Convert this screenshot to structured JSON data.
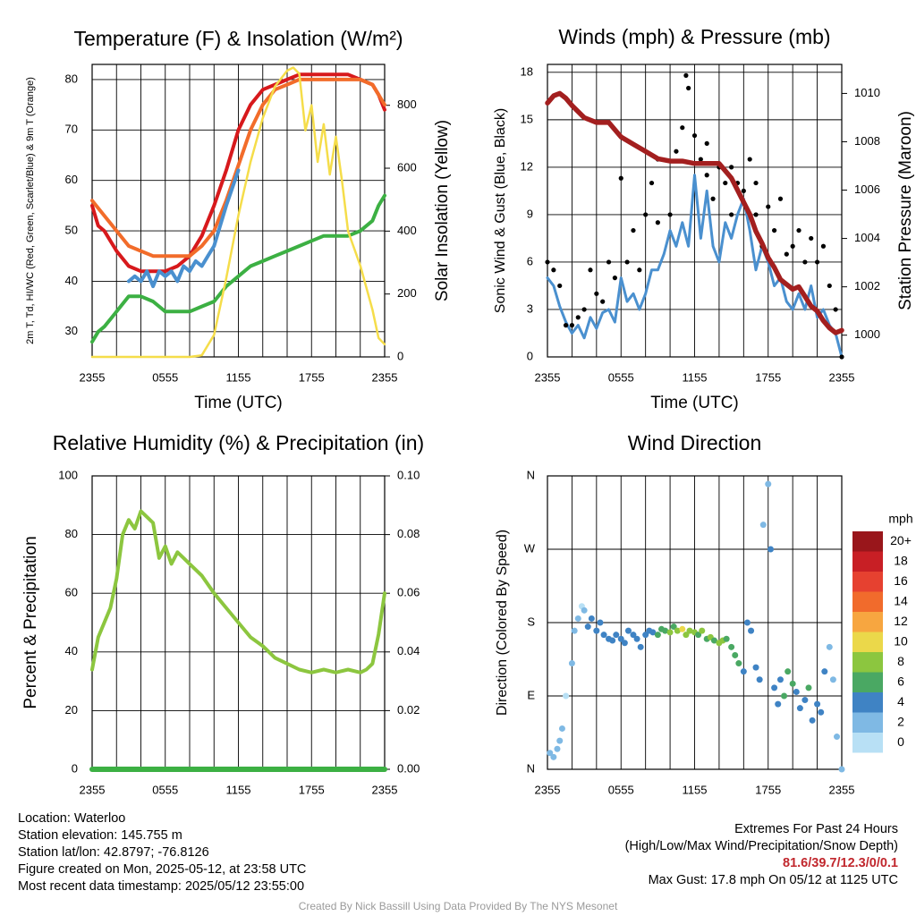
{
  "chart_data": [
    {
      "type": "line",
      "title": "Temperature (F) & Insolation (W/m²)",
      "xlabel": "Time (UTC)",
      "ylabel_left": "2m T, Td, HI/WC (Red, Green, Scarlet/Blue) & 9m T (Orange)",
      "ylabel_right": "Solar Insolation (Yellow)",
      "x_ticks": [
        "2355",
        "0555",
        "1155",
        "1755",
        "2355"
      ],
      "ylim": [
        25,
        83
      ],
      "y_ticks": [
        30,
        40,
        50,
        60,
        70,
        80
      ],
      "y2lim": [
        0,
        930
      ],
      "y2_ticks": [
        0,
        200,
        400,
        600,
        800
      ],
      "grid": true,
      "series": [
        {
          "name": "2m T",
          "color": "#d7191c",
          "axis": "left",
          "x": [
            0,
            0.5,
            1,
            2,
            3,
            4,
            5,
            6,
            7,
            8,
            9,
            10,
            11,
            12,
            13,
            14,
            15,
            16,
            17,
            18,
            19,
            20,
            21,
            22,
            23,
            23.5,
            24
          ],
          "values": [
            55,
            51,
            50,
            46,
            43,
            42,
            42,
            42,
            43,
            45,
            49,
            55,
            62,
            70,
            75,
            78,
            79,
            80,
            81,
            81,
            81,
            81,
            81,
            80,
            79,
            77,
            74
          ]
        },
        {
          "name": "9m T",
          "color": "#f26c2a",
          "axis": "left",
          "x": [
            0,
            1,
            2,
            3,
            4,
            5,
            6,
            7,
            8,
            9,
            10,
            11,
            12,
            13,
            14,
            15,
            16,
            17,
            18,
            19,
            20,
            21,
            22,
            23,
            24
          ],
          "values": [
            56,
            53,
            50,
            47,
            46,
            45,
            45,
            45,
            45,
            47,
            50,
            56,
            63,
            70,
            75,
            78,
            79,
            80,
            80,
            80,
            80,
            80,
            80,
            79,
            75
          ]
        },
        {
          "name": "HI/WC",
          "color": "#4a90cf",
          "axis": "left",
          "x": [
            3,
            3.5,
            4,
            4.5,
            5,
            5.5,
            6,
            6.5,
            7,
            7.5,
            8,
            8.5,
            9,
            9.5,
            10,
            11,
            12
          ],
          "values": [
            40,
            41,
            40,
            42,
            39,
            42,
            41,
            42,
            40,
            43,
            42,
            44,
            43,
            45,
            47,
            55,
            62
          ]
        },
        {
          "name": "2m Td",
          "color": "#3cb043",
          "axis": "left",
          "x": [
            0,
            0.5,
            1,
            2,
            3,
            4,
            5,
            6,
            7,
            8,
            9,
            10,
            11,
            12,
            13,
            14,
            15,
            16,
            17,
            18,
            19,
            20,
            21,
            22,
            23,
            23.5,
            24
          ],
          "values": [
            28,
            30,
            31,
            34,
            37,
            37,
            36,
            34,
            34,
            34,
            35,
            36,
            39,
            41,
            43,
            44,
            45,
            46,
            47,
            48,
            49,
            49,
            49,
            50,
            52,
            55,
            57
          ]
        },
        {
          "name": "Solar Insolation",
          "color": "#f5dd4a",
          "axis": "right",
          "x": [
            0,
            8,
            9,
            10,
            11,
            12,
            13,
            14,
            15,
            16,
            16.5,
            17,
            17.5,
            18,
            18.5,
            19,
            19.5,
            20,
            20.5,
            21,
            22,
            23,
            23.5,
            24
          ],
          "values": [
            0,
            0,
            5,
            70,
            250,
            450,
            620,
            760,
            860,
            910,
            920,
            900,
            720,
            800,
            620,
            740,
            580,
            700,
            560,
            400,
            290,
            150,
            60,
            40
          ]
        }
      ]
    },
    {
      "type": "line",
      "title": "Winds (mph) & Pressure (mb)",
      "xlabel": "Time (UTC)",
      "ylabel_left": "Sonic Wind & Gust (Blue, Black)",
      "ylabel_right": "Station Pressure (Maroon)",
      "x_ticks": [
        "2355",
        "0555",
        "1155",
        "1755",
        "2355"
      ],
      "ylim": [
        0,
        18.5
      ],
      "y_ticks": [
        0,
        3,
        6,
        9,
        12,
        15,
        18
      ],
      "y2lim": [
        999.1,
        1011.2
      ],
      "y2_ticks": [
        1000,
        1002,
        1004,
        1006,
        1008,
        1010
      ],
      "grid": true,
      "series": [
        {
          "name": "Sonic Wind",
          "color": "#4a90cf",
          "axis": "left",
          "x": [
            0,
            0.5,
            1,
            1.5,
            2,
            2.5,
            3,
            3.5,
            4,
            4.5,
            5,
            5.5,
            6,
            6.5,
            7,
            7.5,
            8,
            8.5,
            9,
            9.5,
            10,
            10.5,
            11,
            11.5,
            12,
            12.5,
            13,
            13.5,
            14,
            14.5,
            15,
            15.5,
            16,
            16.5,
            17,
            17.5,
            18,
            18.5,
            19,
            19.5,
            20,
            20.5,
            21,
            21.5,
            22,
            22.5,
            23,
            23.5,
            24
          ],
          "values": [
            5,
            4.5,
            3.2,
            2.2,
            1.5,
            2,
            1.2,
            2.5,
            1.8,
            2.8,
            3,
            2.2,
            5,
            3.5,
            4,
            3,
            4,
            5.5,
            5.5,
            6.5,
            8,
            7,
            8.5,
            7,
            11.5,
            7.5,
            10.5,
            7,
            6,
            8.5,
            7.5,
            9,
            10,
            8,
            5.5,
            7,
            6,
            4.5,
            5,
            3.5,
            3,
            4,
            3,
            4.5,
            2.5,
            3,
            2,
            1.5,
            0
          ]
        },
        {
          "name": "Gust",
          "color": "#000000",
          "axis": "left",
          "type": "scatter",
          "x": [
            0,
            0.5,
            1,
            1.5,
            2,
            2.5,
            3,
            3.5,
            4,
            4.5,
            5,
            5.5,
            6,
            6.5,
            7,
            7.5,
            8,
            8.5,
            9,
            9,
            10,
            10.5,
            11,
            11.3,
            11.5,
            12,
            12.5,
            13,
            13,
            13.5,
            14,
            14.5,
            15,
            15,
            15.5,
            16,
            16.5,
            17,
            17,
            17.5,
            18,
            18.5,
            19,
            19.5,
            20,
            20.5,
            21,
            21.5,
            22,
            22.5,
            23,
            23.5,
            24
          ],
          "values": [
            6,
            5.5,
            4.5,
            2,
            2,
            2.5,
            3,
            5.5,
            4,
            3.5,
            6,
            5,
            11.3,
            6,
            8,
            5.5,
            9,
            11,
            8.5,
            12.5,
            9,
            13,
            14.5,
            17.8,
            17,
            14,
            12.5,
            11.5,
            13.5,
            10,
            12,
            11,
            12,
            9,
            11,
            10.5,
            12.5,
            9,
            11,
            7,
            9.5,
            8,
            10,
            6.5,
            7,
            8,
            6,
            7.5,
            6,
            7,
            4.5,
            3,
            0
          ]
        },
        {
          "name": "Station Pressure",
          "color": "#a31f1f",
          "axis": "right",
          "x": [
            0,
            0.5,
            1,
            1.5,
            2,
            3,
            4,
            5,
            6,
            7,
            8,
            9,
            10,
            11,
            12,
            13,
            14,
            15,
            15.5,
            16,
            16.5,
            17,
            17.5,
            18,
            18.5,
            19,
            20,
            20.5,
            21,
            21.5,
            22,
            22.5,
            23,
            23.5,
            24
          ],
          "values": [
            1009.6,
            1009.9,
            1010.0,
            1009.8,
            1009.5,
            1009.0,
            1008.8,
            1008.8,
            1008.2,
            1007.9,
            1007.6,
            1007.3,
            1007.2,
            1007.2,
            1007.1,
            1007.1,
            1007.1,
            1006.5,
            1006.0,
            1005.5,
            1005.0,
            1004.3,
            1003.8,
            1003.2,
            1002.8,
            1002.3,
            1001.9,
            1002.0,
            1001.6,
            1001.2,
            1001.0,
            1000.6,
            1000.3,
            1000.1,
            1000.2
          ]
        }
      ]
    },
    {
      "type": "line",
      "title": "Relative Humidity (%) & Precipitation (in)",
      "xlabel": "",
      "ylabel": "Percent & Precipitation",
      "x_ticks": [
        "2355",
        "0555",
        "1155",
        "1755",
        "2355"
      ],
      "ylim": [
        0,
        100
      ],
      "y_ticks": [
        0,
        20,
        40,
        60,
        80,
        100
      ],
      "y2lim": [
        0,
        0.1
      ],
      "y2_ticks": [
        "0.00",
        "0.02",
        "0.04",
        "0.06",
        "0.08",
        "0.10"
      ],
      "grid": true,
      "series": [
        {
          "name": "Relative Humidity",
          "color": "#8cc63f",
          "axis": "left",
          "x": [
            0,
            0.5,
            1,
            1.5,
            2,
            2.5,
            3,
            3.5,
            4,
            4.5,
            5,
            5.5,
            6,
            6.5,
            7,
            7.5,
            8,
            9,
            10,
            11,
            12,
            13,
            14,
            15,
            16,
            17,
            18,
            19,
            20,
            21,
            22,
            22.5,
            23,
            23.5,
            24
          ],
          "values": [
            34,
            45,
            50,
            55,
            65,
            80,
            85,
            82,
            88,
            86,
            84,
            72,
            76,
            70,
            74,
            72,
            70,
            66,
            60,
            55,
            50,
            45,
            42,
            38,
            36,
            34,
            33,
            34,
            33,
            34,
            33,
            34,
            36,
            46,
            60
          ]
        },
        {
          "name": "Precipitation",
          "color": "#3cb043",
          "axis": "right",
          "x": [
            0,
            24
          ],
          "values": [
            0,
            0
          ]
        }
      ]
    },
    {
      "type": "scatter",
      "title": "Wind Direction",
      "ylabel": "Direction (Colored By Speed)",
      "x_ticks": [
        "2355",
        "0555",
        "1155",
        "1755",
        "2355"
      ],
      "y_ticks": [
        "N",
        "E",
        "S",
        "W",
        "N"
      ],
      "ylim": [
        0,
        360
      ],
      "grid": true,
      "colorbar": {
        "title": "mph",
        "labels": [
          "20+",
          "18",
          "16",
          "14",
          "12",
          "10",
          "8",
          "6",
          "4",
          "2",
          "0"
        ],
        "colors": [
          "#99161b",
          "#c81f25",
          "#e64130",
          "#f16b2c",
          "#f7a640",
          "#ebd84a",
          "#8cc63f",
          "#4aa863",
          "#3f83c4",
          "#7fb9e4",
          "#b8e0f5"
        ]
      },
      "points": [
        [
          0.2,
          20,
          2
        ],
        [
          0.5,
          15,
          1
        ],
        [
          0.8,
          25,
          2
        ],
        [
          1,
          35,
          2
        ],
        [
          1.2,
          50,
          1
        ],
        [
          1.5,
          90,
          0
        ],
        [
          2,
          130,
          1
        ],
        [
          2.2,
          170,
          2
        ],
        [
          2.5,
          185,
          1
        ],
        [
          2.8,
          200,
          0
        ],
        [
          3,
          195,
          2
        ],
        [
          3.3,
          175,
          3
        ],
        [
          3.6,
          185,
          4
        ],
        [
          4,
          170,
          4
        ],
        [
          4.3,
          180,
          3
        ],
        [
          4.6,
          165,
          4
        ],
        [
          5,
          160,
          3
        ],
        [
          5.3,
          158,
          4
        ],
        [
          5.6,
          165,
          4
        ],
        [
          6,
          160,
          3
        ],
        [
          6.3,
          155,
          4
        ],
        [
          6.6,
          170,
          3
        ],
        [
          7,
          165,
          4
        ],
        [
          7.3,
          160,
          4
        ],
        [
          7.6,
          150,
          3
        ],
        [
          8,
          165,
          4
        ],
        [
          8.3,
          170,
          3
        ],
        [
          8.6,
          168,
          4
        ],
        [
          9,
          165,
          5
        ],
        [
          9.3,
          172,
          6
        ],
        [
          9.6,
          170,
          6
        ],
        [
          10,
          168,
          7
        ],
        [
          10.3,
          175,
          6
        ],
        [
          10.6,
          170,
          8
        ],
        [
          11,
          172,
          9
        ],
        [
          11.3,
          165,
          8
        ],
        [
          11.6,
          170,
          8
        ],
        [
          12,
          168,
          7
        ],
        [
          12.3,
          165,
          6
        ],
        [
          12.6,
          170,
          7
        ],
        [
          13,
          160,
          6
        ],
        [
          13.3,
          162,
          7
        ],
        [
          13.6,
          158,
          6
        ],
        [
          14,
          155,
          8
        ],
        [
          14.3,
          158,
          7
        ],
        [
          14.6,
          160,
          6
        ],
        [
          15,
          150,
          5
        ],
        [
          15.3,
          140,
          6
        ],
        [
          15.6,
          130,
          5
        ],
        [
          16,
          120,
          4
        ],
        [
          16.3,
          180,
          4
        ],
        [
          16.6,
          170,
          4
        ],
        [
          17,
          125,
          4
        ],
        [
          17.3,
          110,
          3
        ],
        [
          17.6,
          300,
          2
        ],
        [
          18,
          350,
          2
        ],
        [
          18.2,
          270,
          4
        ],
        [
          18.5,
          100,
          3
        ],
        [
          18.8,
          80,
          4
        ],
        [
          19,
          110,
          4
        ],
        [
          19.3,
          90,
          6
        ],
        [
          19.6,
          120,
          5
        ],
        [
          20,
          105,
          6
        ],
        [
          20.3,
          95,
          4
        ],
        [
          20.6,
          75,
          3
        ],
        [
          21,
          85,
          4
        ],
        [
          21.3,
          100,
          5
        ],
        [
          21.6,
          60,
          4
        ],
        [
          22,
          80,
          3
        ],
        [
          22.3,
          70,
          4
        ],
        [
          22.6,
          120,
          3
        ],
        [
          23,
          150,
          2
        ],
        [
          23.3,
          110,
          2
        ],
        [
          23.6,
          40,
          1
        ],
        [
          24,
          0,
          2
        ]
      ]
    }
  ],
  "info": {
    "location": "Location: Waterloo",
    "elevation": "Station elevation: 145.755 m",
    "latlon": "Station lat/lon: 42.8797; -76.8126",
    "created": "Figure created on Mon, 2025-05-12, at 23:58 UTC",
    "recent": "Most recent data timestamp: 2025/05/12 23:55:00"
  },
  "extremes": {
    "heading": "Extremes For Past 24 Hours",
    "subheading": "(High/Low/Max Wind/Precipitation/Snow Depth)",
    "values": "81.6/39.7/12.3/0/0.1",
    "gust": "Max Gust: 17.8 mph On 05/12 at 1125 UTC"
  },
  "credit": "Created By Nick Bassill Using Data Provided By The NYS Mesonet"
}
